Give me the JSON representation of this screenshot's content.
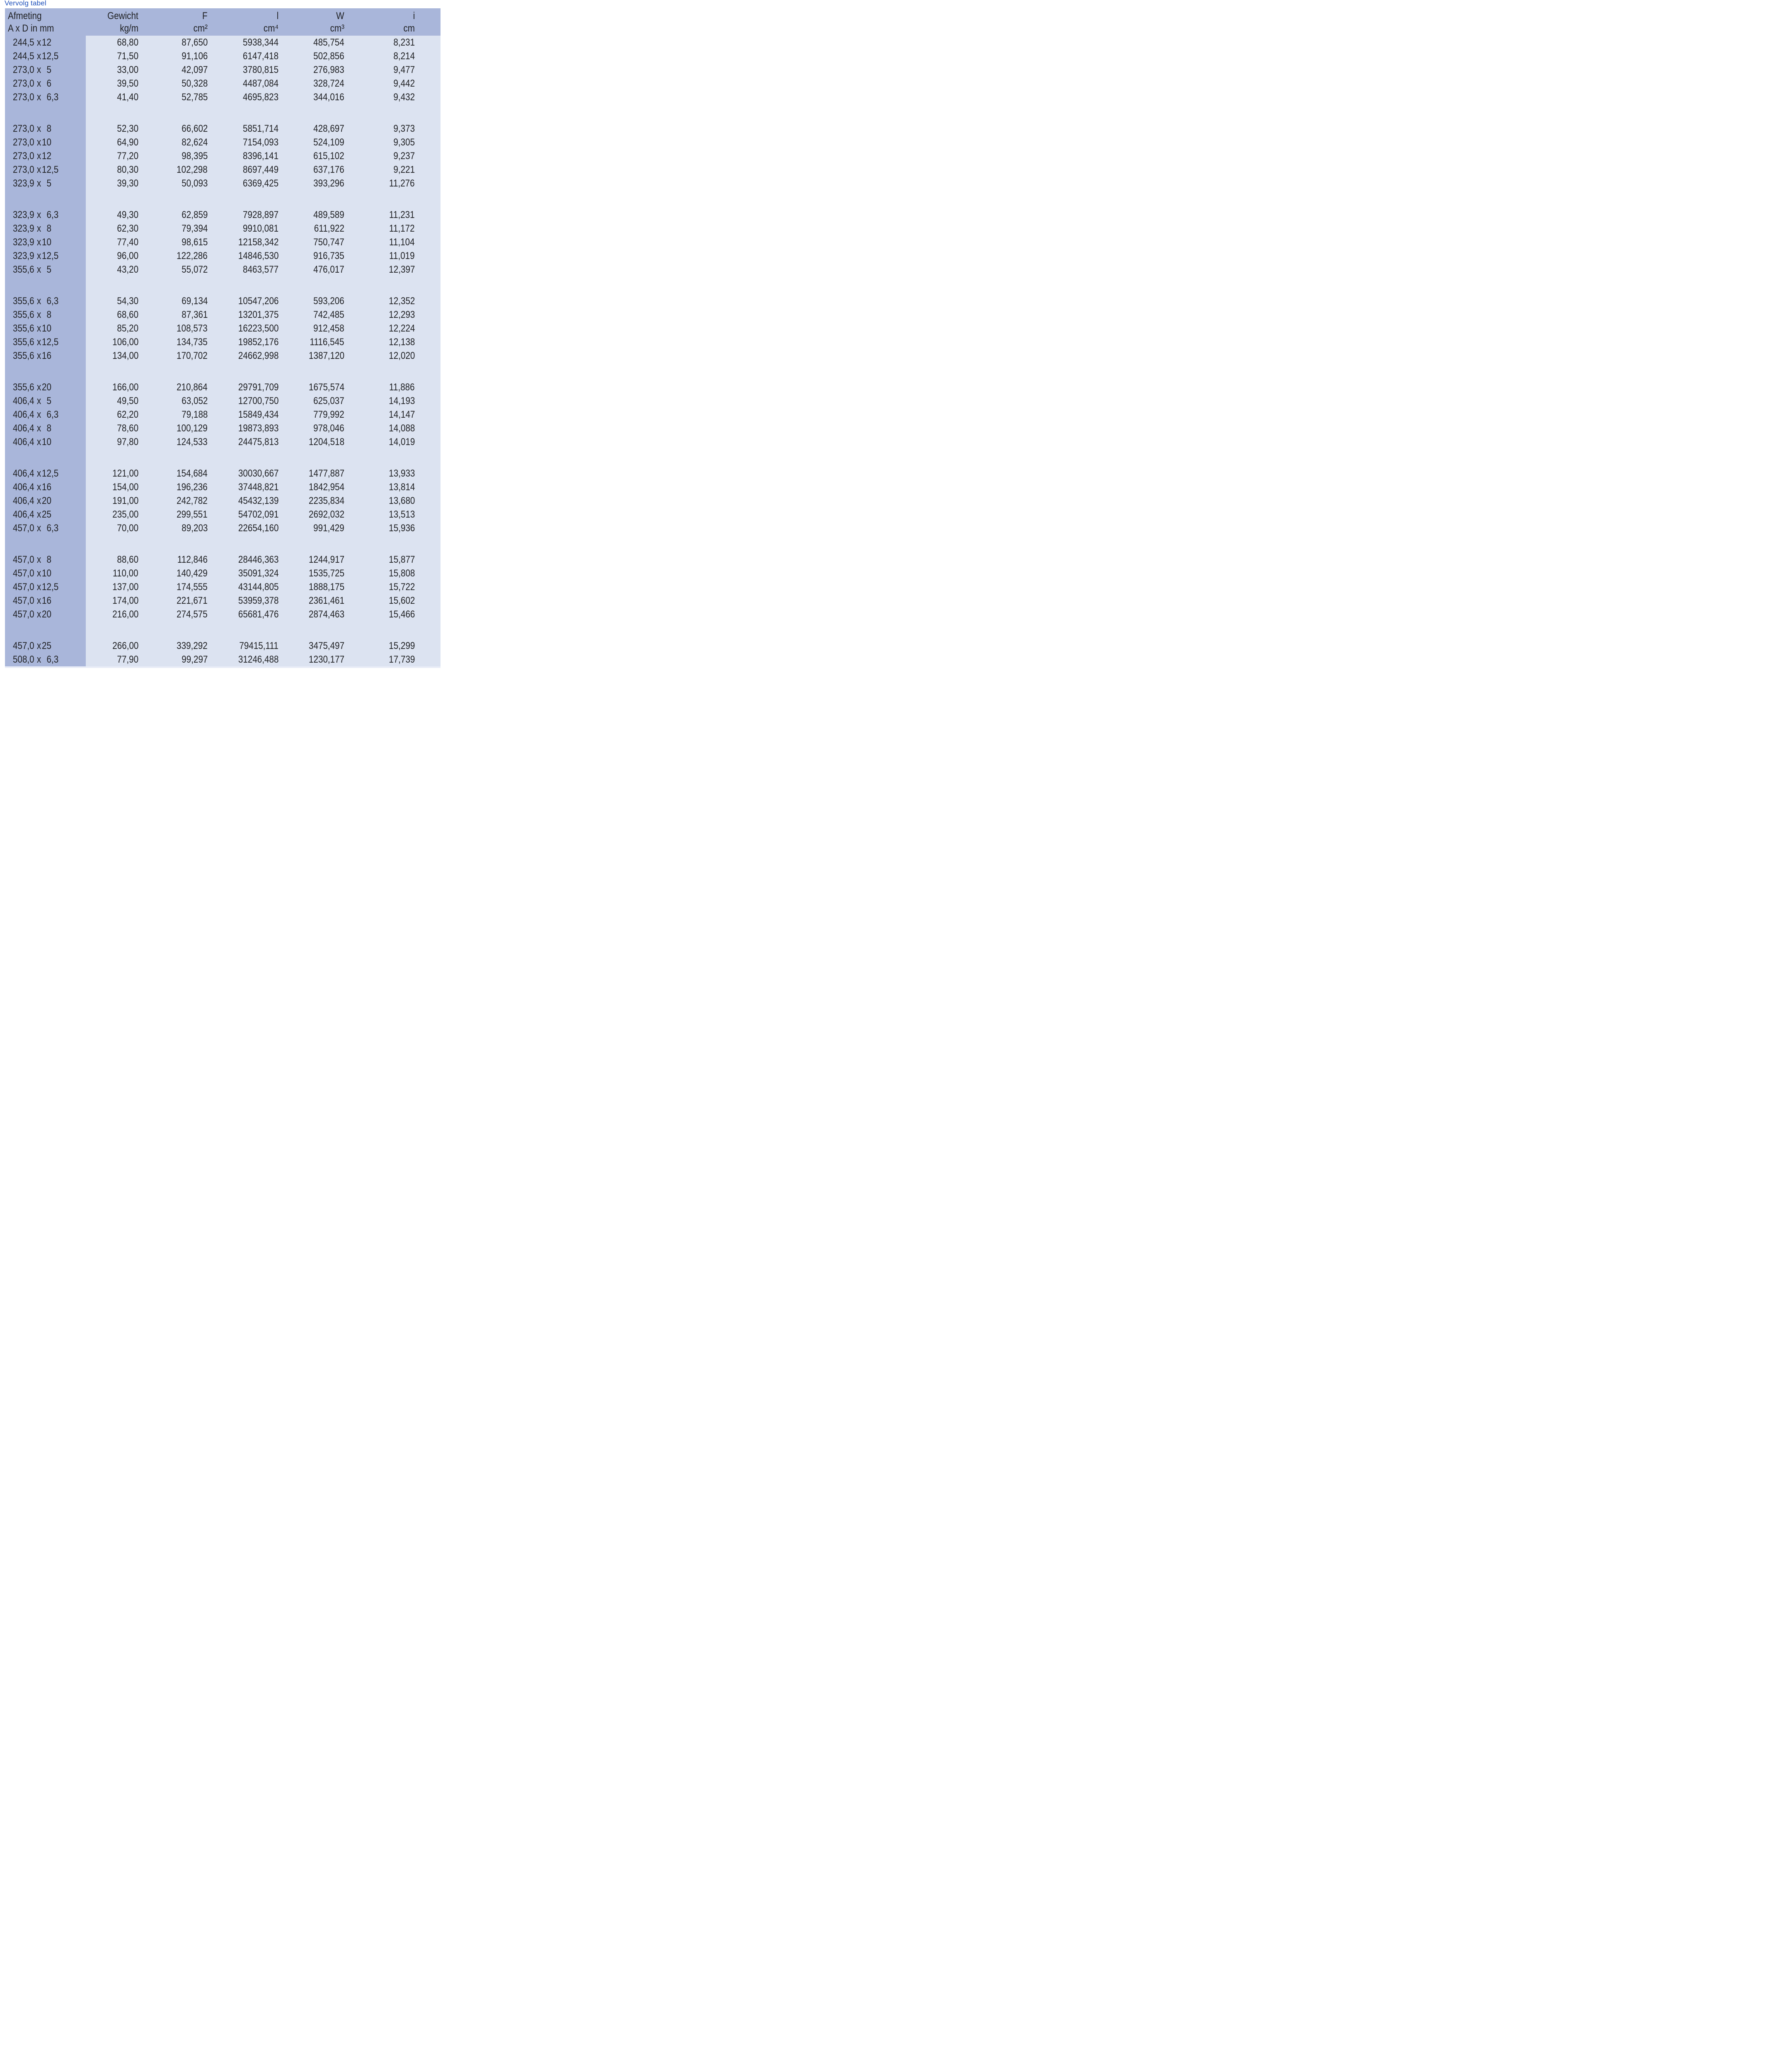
{
  "title": "Vervolg tabel",
  "table": {
    "x_separator": "x",
    "columns": [
      {
        "key": "afmeting",
        "label": "Afmeting",
        "sub": "A x D in mm"
      },
      {
        "key": "gewicht",
        "label": "Gewicht",
        "sub": "kg/m"
      },
      {
        "key": "f",
        "label": "F",
        "sub": "cm²"
      },
      {
        "key": "l",
        "label": "l",
        "sub": "cm⁴"
      },
      {
        "key": "w",
        "label": "W",
        "sub": "cm³"
      },
      {
        "key": "i",
        "label": "i",
        "sub": "cm"
      }
    ],
    "groups": [
      {
        "rows": [
          [
            "244,5",
            "12",
            "68,80",
            "87,650",
            "5938,344",
            "485,754",
            "8,231"
          ],
          [
            "244,5",
            "12,5",
            "71,50",
            "91,106",
            "6147,418",
            "502,856",
            "8,214"
          ],
          [
            "273,0",
            "5",
            "33,00",
            "42,097",
            "3780,815",
            "276,983",
            "9,477"
          ],
          [
            "273,0",
            "6",
            "39,50",
            "50,328",
            "4487,084",
            "328,724",
            "9,442"
          ],
          [
            "273,0",
            "6,3",
            "41,40",
            "52,785",
            "4695,823",
            "344,016",
            "9,432"
          ]
        ]
      },
      {
        "rows": [
          [
            "273,0",
            "8",
            "52,30",
            "66,602",
            "5851,714",
            "428,697",
            "9,373"
          ],
          [
            "273,0",
            "10",
            "64,90",
            "82,624",
            "7154,093",
            "524,109",
            "9,305"
          ],
          [
            "273,0",
            "12",
            "77,20",
            "98,395",
            "8396,141",
            "615,102",
            "9,237"
          ],
          [
            "273,0",
            "12,5",
            "80,30",
            "102,298",
            "8697,449",
            "637,176",
            "9,221"
          ],
          [
            "323,9",
            "5",
            "39,30",
            "50,093",
            "6369,425",
            "393,296",
            "11,276"
          ]
        ]
      },
      {
        "rows": [
          [
            "323,9",
            "6,3",
            "49,30",
            "62,859",
            "7928,897",
            "489,589",
            "11,231"
          ],
          [
            "323,9",
            "8",
            "62,30",
            "79,394",
            "9910,081",
            "611,922",
            "11,172"
          ],
          [
            "323,9",
            "10",
            "77,40",
            "98,615",
            "12158,342",
            "750,747",
            "11,104"
          ],
          [
            "323,9",
            "12,5",
            "96,00",
            "122,286",
            "14846,530",
            "916,735",
            "11,019"
          ],
          [
            "355,6",
            "5",
            "43,20",
            "55,072",
            "8463,577",
            "476,017",
            "12,397"
          ]
        ]
      },
      {
        "rows": [
          [
            "355,6",
            "6,3",
            "54,30",
            "69,134",
            "10547,206",
            "593,206",
            "12,352"
          ],
          [
            "355,6",
            "8",
            "68,60",
            "87,361",
            "13201,375",
            "742,485",
            "12,293"
          ],
          [
            "355,6",
            "10",
            "85,20",
            "108,573",
            "16223,500",
            "912,458",
            "12,224"
          ],
          [
            "355,6",
            "12,5",
            "106,00",
            "134,735",
            "19852,176",
            "1116,545",
            "12,138"
          ],
          [
            "355,6",
            "16",
            "134,00",
            "170,702",
            "24662,998",
            "1387,120",
            "12,020"
          ]
        ]
      },
      {
        "rows": [
          [
            "355,6",
            "20",
            "166,00",
            "210,864",
            "29791,709",
            "1675,574",
            "11,886"
          ],
          [
            "406,4",
            "5",
            "49,50",
            "63,052",
            "12700,750",
            "625,037",
            "14,193"
          ],
          [
            "406,4",
            "6,3",
            "62,20",
            "79,188",
            "15849,434",
            "779,992",
            "14,147"
          ],
          [
            "406,4",
            "8",
            "78,60",
            "100,129",
            "19873,893",
            "978,046",
            "14,088"
          ],
          [
            "406,4",
            "10",
            "97,80",
            "124,533",
            "24475,813",
            "1204,518",
            "14,019"
          ]
        ]
      },
      {
        "rows": [
          [
            "406,4",
            "12,5",
            "121,00",
            "154,684",
            "30030,667",
            "1477,887",
            "13,933"
          ],
          [
            "406,4",
            "16",
            "154,00",
            "196,236",
            "37448,821",
            "1842,954",
            "13,814"
          ],
          [
            "406,4",
            "20",
            "191,00",
            "242,782",
            "45432,139",
            "2235,834",
            "13,680"
          ],
          [
            "406,4",
            "25",
            "235,00",
            "299,551",
            "54702,091",
            "2692,032",
            "13,513"
          ],
          [
            "457,0",
            "6,3",
            "70,00",
            "89,203",
            "22654,160",
            "991,429",
            "15,936"
          ]
        ]
      },
      {
        "rows": [
          [
            "457,0",
            "8",
            "88,60",
            "112,846",
            "28446,363",
            "1244,917",
            "15,877"
          ],
          [
            "457,0",
            "10",
            "110,00",
            "140,429",
            "35091,324",
            "1535,725",
            "15,808"
          ],
          [
            "457,0",
            "12,5",
            "137,00",
            "174,555",
            "43144,805",
            "1888,175",
            "15,722"
          ],
          [
            "457,0",
            "16",
            "174,00",
            "221,671",
            "53959,378",
            "2361,461",
            "15,602"
          ],
          [
            "457,0",
            "20",
            "216,00",
            "274,575",
            "65681,476",
            "2874,463",
            "15,466"
          ]
        ]
      },
      {
        "rows": [
          [
            "457,0",
            "25",
            "266,00",
            "339,292",
            "79415,111",
            "3475,497",
            "15,299"
          ],
          [
            "508,0",
            "6,3",
            "77,90",
            "99,297",
            "31246,488",
            "1230,177",
            "17,739"
          ]
        ]
      }
    ]
  },
  "colors": {
    "header_band": "#a9b6da",
    "first_column": "#a9b6da",
    "data_area": "#dce3f1",
    "bottom_strip": "#e9edf7",
    "title_text": "#1d4fba",
    "body_text": "#1f2023"
  }
}
